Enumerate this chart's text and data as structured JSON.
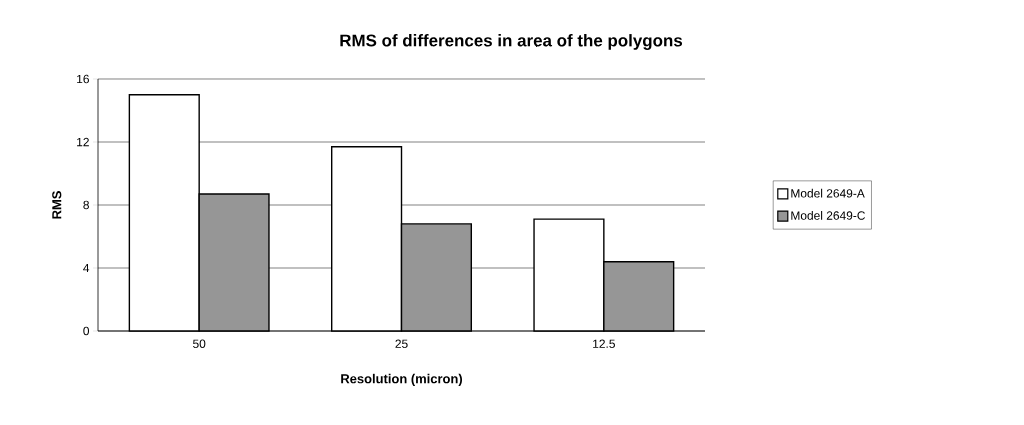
{
  "chart_data": {
    "type": "bar",
    "title": "RMS of differences in area of the polygons",
    "xlabel": "Resolution (micron)",
    "ylabel": "RMS",
    "categories": [
      "50",
      "25",
      "12.5"
    ],
    "series": [
      {
        "name": "Model 2649-A",
        "color": "#ffffff",
        "values": [
          15,
          11.7,
          7.1
        ]
      },
      {
        "name": "Model 2649-C",
        "color": "#969696",
        "values": [
          8.7,
          6.8,
          4.4
        ]
      }
    ],
    "ylim": [
      0,
      16
    ],
    "yticks": [
      0,
      4,
      8,
      12,
      16
    ],
    "grid": "y",
    "legend": "right"
  }
}
